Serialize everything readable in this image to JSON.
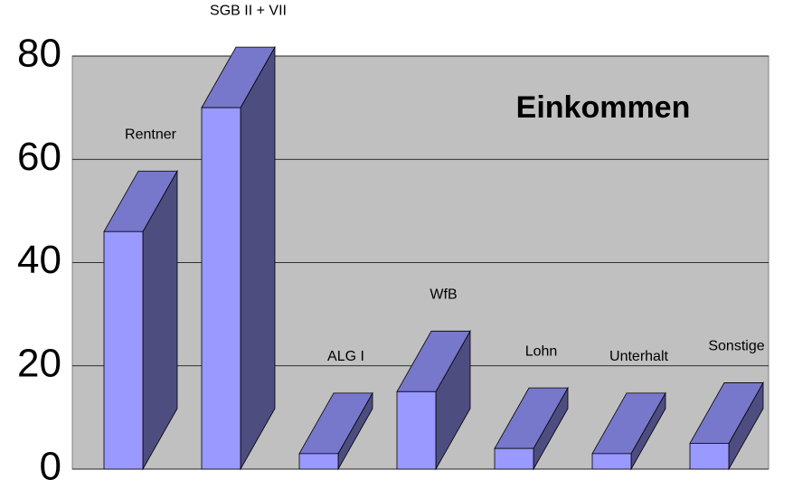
{
  "chart_data": {
    "type": "bar3d",
    "title": "Einkommen",
    "categories": [
      "Rentner",
      "SGB II + VII",
      "ALG I",
      "WfB",
      "Lohn",
      "Unterhalt",
      "Sonstige"
    ],
    "values": [
      46,
      70,
      3,
      15,
      4,
      3,
      5
    ],
    "color": "#9999ff",
    "ylim": [
      0,
      80
    ],
    "yticks": [
      0,
      20,
      40,
      60,
      80
    ],
    "grid": true
  }
}
